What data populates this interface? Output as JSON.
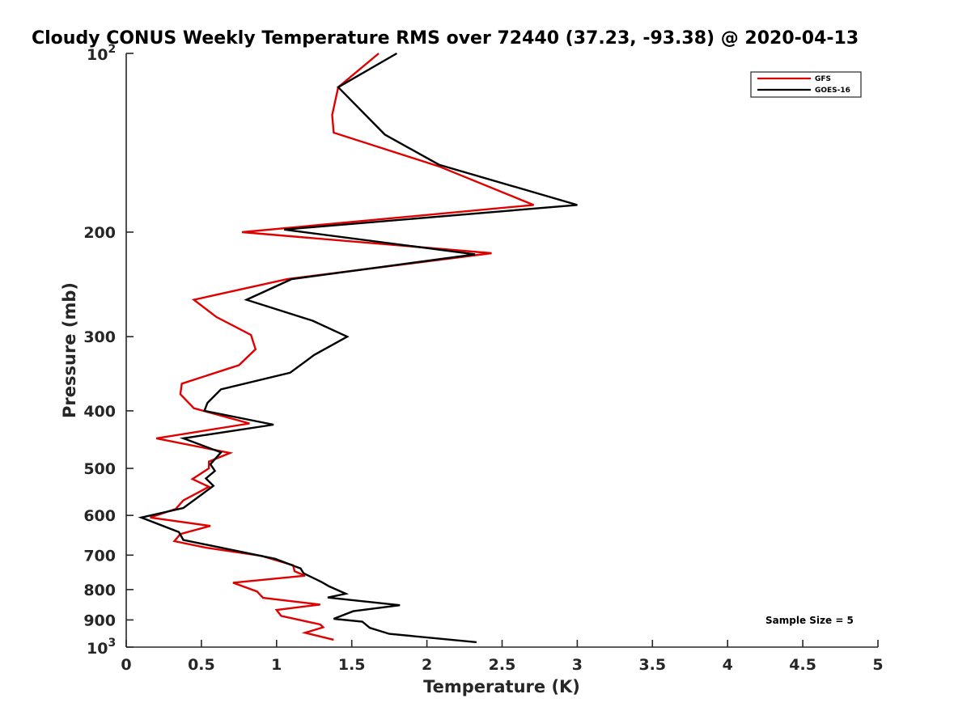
{
  "chart_data": {
    "type": "line",
    "title": "Cloudy CONUS Weekly Temperature RMS over 72440 (37.23, -93.38) @ 2020-04-13",
    "xlabel": "Temperature (K)",
    "ylabel": "Pressure (mb)",
    "xlim": [
      0,
      5
    ],
    "ylim": [
      100,
      1000
    ],
    "y_scale": "log",
    "y_reversed": true,
    "grid": false,
    "legend_position": "top-right",
    "x_ticks": [
      {
        "value": 0,
        "label": "0"
      },
      {
        "value": 0.5,
        "label": "0.5"
      },
      {
        "value": 1,
        "label": "1"
      },
      {
        "value": 1.5,
        "label": "1.5"
      },
      {
        "value": 2,
        "label": "2"
      },
      {
        "value": 2.5,
        "label": "2.5"
      },
      {
        "value": 3,
        "label": "3"
      },
      {
        "value": 3.5,
        "label": "3.5"
      },
      {
        "value": 4,
        "label": "4"
      },
      {
        "value": 4.5,
        "label": "4.5"
      },
      {
        "value": 5,
        "label": "5"
      }
    ],
    "y_ticks": [
      {
        "value": 100,
        "base": "10",
        "exp": "2"
      },
      {
        "value": 200,
        "label": "200"
      },
      {
        "value": 300,
        "label": "300"
      },
      {
        "value": 400,
        "label": "400"
      },
      {
        "value": 500,
        "label": "500"
      },
      {
        "value": 600,
        "label": "600"
      },
      {
        "value": 700,
        "label": "700"
      },
      {
        "value": 800,
        "label": "800"
      },
      {
        "value": 900,
        "label": "900"
      },
      {
        "value": 1000,
        "base": "10",
        "exp": "3"
      }
    ],
    "annotation": "Sample Size = 5",
    "series": [
      {
        "name": "GFS",
        "color": "#e00000",
        "points": [
          [
            1.68,
            100
          ],
          [
            1.41,
            114
          ],
          [
            1.37,
            127
          ],
          [
            1.38,
            136
          ],
          [
            2.08,
            155
          ],
          [
            2.71,
            180
          ],
          [
            0.77,
            200
          ],
          [
            2.43,
            217
          ],
          [
            1.07,
            240
          ],
          [
            0.45,
            260
          ],
          [
            0.6,
            278
          ],
          [
            0.83,
            298
          ],
          [
            0.86,
            315
          ],
          [
            0.75,
            335
          ],
          [
            0.37,
            360
          ],
          [
            0.36,
            375
          ],
          [
            0.45,
            396
          ],
          [
            0.82,
            420
          ],
          [
            0.2,
            445
          ],
          [
            0.69,
            471
          ],
          [
            0.55,
            487
          ],
          [
            0.55,
            500
          ],
          [
            0.44,
            521
          ],
          [
            0.55,
            537
          ],
          [
            0.38,
            566
          ],
          [
            0.33,
            585
          ],
          [
            0.16,
            605
          ],
          [
            0.56,
            625
          ],
          [
            0.36,
            645
          ],
          [
            0.32,
            663
          ],
          [
            0.53,
            680
          ],
          [
            0.9,
            702
          ],
          [
            1.11,
            728
          ],
          [
            1.12,
            745
          ],
          [
            1.19,
            758
          ],
          [
            0.71,
            779
          ],
          [
            0.87,
            806
          ],
          [
            0.91,
            826
          ],
          [
            1.29,
            848
          ],
          [
            1.0,
            866
          ],
          [
            1.03,
            886
          ],
          [
            1.29,
            916
          ],
          [
            1.31,
            926
          ],
          [
            1.19,
            946
          ],
          [
            1.38,
            972
          ]
        ]
      },
      {
        "name": "GOES-16",
        "color": "#000000",
        "points": [
          [
            1.8,
            100
          ],
          [
            1.41,
            114
          ],
          [
            1.72,
            137
          ],
          [
            2.08,
            154
          ],
          [
            3.0,
            180
          ],
          [
            1.05,
            198
          ],
          [
            2.32,
            218
          ],
          [
            1.1,
            240
          ],
          [
            0.8,
            260
          ],
          [
            1.24,
            282
          ],
          [
            1.47,
            300
          ],
          [
            1.25,
            322
          ],
          [
            1.09,
            345
          ],
          [
            0.63,
            368
          ],
          [
            0.54,
            388
          ],
          [
            0.52,
            400
          ],
          [
            0.98,
            422
          ],
          [
            0.38,
            445
          ],
          [
            0.63,
            470
          ],
          [
            0.56,
            492
          ],
          [
            0.59,
            505
          ],
          [
            0.53,
            520
          ],
          [
            0.58,
            535
          ],
          [
            0.38,
            583
          ],
          [
            0.1,
            605
          ],
          [
            0.35,
            640
          ],
          [
            0.38,
            660
          ],
          [
            0.99,
            710
          ],
          [
            1.16,
            737
          ],
          [
            1.18,
            751
          ],
          [
            1.3,
            777
          ],
          [
            1.35,
            790
          ],
          [
            1.46,
            813
          ],
          [
            1.34,
            825
          ],
          [
            1.82,
            850
          ],
          [
            1.51,
            870
          ],
          [
            1.38,
            896
          ],
          [
            1.57,
            906
          ],
          [
            1.62,
            928
          ],
          [
            1.75,
            950
          ],
          [
            2.33,
            981
          ]
        ]
      }
    ]
  }
}
